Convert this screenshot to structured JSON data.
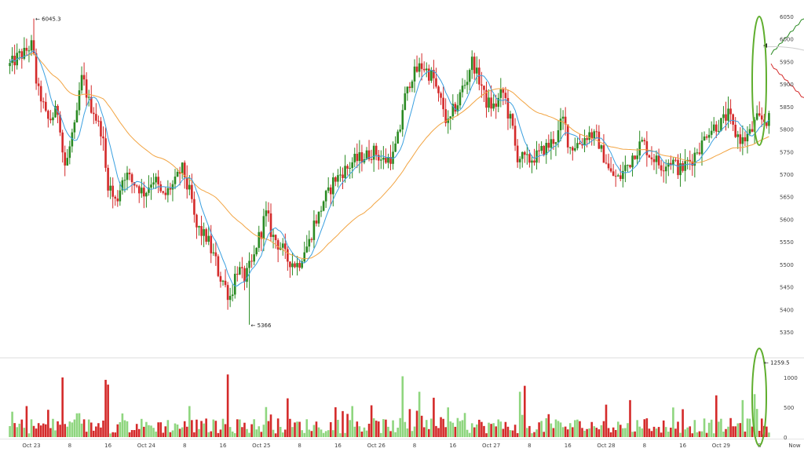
{
  "chart_data": {
    "type": "candlestick",
    "price_axis": {
      "ylim": [
        5325,
        6075
      ],
      "ticks": [
        5350,
        5400,
        5450,
        5500,
        5550,
        5600,
        5650,
        5700,
        5750,
        5800,
        5850,
        5900,
        5950,
        6000,
        6050
      ]
    },
    "volume_axis": {
      "ylim": [
        0,
        1290
      ],
      "ticks": [
        0,
        500,
        1000
      ]
    },
    "x_axis": {
      "ticks": [
        {
          "label": "Oct 23",
          "hour": 0
        },
        {
          "label": "8",
          "hour": 8
        },
        {
          "label": "16",
          "hour": 16
        },
        {
          "label": "Oct 24",
          "hour": 24
        },
        {
          "label": "8",
          "hour": 32
        },
        {
          "label": "16",
          "hour": 40
        },
        {
          "label": "Oct 25",
          "hour": 48
        },
        {
          "label": "8",
          "hour": 56
        },
        {
          "label": "16",
          "hour": 64
        },
        {
          "label": "Oct 26",
          "hour": 72
        },
        {
          "label": "8",
          "hour": 80
        },
        {
          "label": "16",
          "hour": 88
        },
        {
          "label": "Oct 27",
          "hour": 96
        },
        {
          "label": "8",
          "hour": 104
        },
        {
          "label": "16",
          "hour": 112
        },
        {
          "label": "Oct 28",
          "hour": 120
        },
        {
          "label": "8",
          "hour": 128
        },
        {
          "label": "16",
          "hour": 136
        },
        {
          "label": "Oct 29",
          "hour": 144
        },
        {
          "label": "8",
          "hour": 152
        },
        {
          "label": "Now",
          "hour": 158
        }
      ]
    },
    "annotations": {
      "high_label": "6045.3",
      "high_value": 6045.3,
      "high_hour": 0.5,
      "low_label": "5366",
      "low_value": 5366,
      "low_hour": 45.5,
      "volume_max_label": "1259.5",
      "volume_max_value": 1259.5
    },
    "price_anchors": [
      [
        -4.5,
        5940
      ],
      [
        -1.5,
        5965
      ],
      [
        0.5,
        5985
      ],
      [
        2,
        5880
      ],
      [
        4,
        5820
      ],
      [
        6,
        5840
      ],
      [
        7.5,
        5720
      ],
      [
        9.5,
        5800
      ],
      [
        11,
        5910
      ],
      [
        13,
        5850
      ],
      [
        15,
        5800
      ],
      [
        16.5,
        5680
      ],
      [
        18,
        5640
      ],
      [
        20,
        5700
      ],
      [
        22,
        5680
      ],
      [
        24,
        5660
      ],
      [
        26,
        5690
      ],
      [
        28,
        5650
      ],
      [
        30,
        5675
      ],
      [
        32,
        5710
      ],
      [
        33.5,
        5660
      ],
      [
        35,
        5580
      ],
      [
        37,
        5560
      ],
      [
        38.5,
        5520
      ],
      [
        40,
        5470
      ],
      [
        42,
        5430
      ],
      [
        43.5,
        5490
      ],
      [
        45,
        5470
      ],
      [
        46.5,
        5500
      ],
      [
        48,
        5560
      ],
      [
        49.5,
        5610
      ],
      [
        51,
        5560
      ],
      [
        52.5,
        5540
      ],
      [
        54,
        5510
      ],
      [
        56,
        5500
      ],
      [
        58,
        5540
      ],
      [
        60,
        5600
      ],
      [
        62,
        5650
      ],
      [
        64,
        5690
      ],
      [
        66,
        5710
      ],
      [
        68,
        5730
      ],
      [
        70,
        5740
      ],
      [
        72,
        5750
      ],
      [
        74,
        5730
      ],
      [
        76,
        5740
      ],
      [
        77,
        5780
      ],
      [
        78.5,
        5870
      ],
      [
        80,
        5920
      ],
      [
        82,
        5940
      ],
      [
        84,
        5920
      ],
      [
        86,
        5860
      ],
      [
        87.5,
        5810
      ],
      [
        89,
        5850
      ],
      [
        91,
        5900
      ],
      [
        92.5,
        5950
      ],
      [
        94,
        5910
      ],
      [
        95.5,
        5860
      ],
      [
        97,
        5850
      ],
      [
        99,
        5880
      ],
      [
        100.5,
        5820
      ],
      [
        102,
        5740
      ],
      [
        104,
        5730
      ],
      [
        106,
        5740
      ],
      [
        108,
        5760
      ],
      [
        110,
        5780
      ],
      [
        111.5,
        5820
      ],
      [
        113,
        5760
      ],
      [
        115,
        5770
      ],
      [
        117,
        5790
      ],
      [
        118.5,
        5780
      ],
      [
        120,
        5740
      ],
      [
        121.5,
        5700
      ],
      [
        123,
        5690
      ],
      [
        125,
        5720
      ],
      [
        126.5,
        5750
      ],
      [
        128,
        5770
      ],
      [
        130,
        5740
      ],
      [
        132,
        5720
      ],
      [
        134,
        5730
      ],
      [
        136,
        5710
      ],
      [
        138,
        5730
      ],
      [
        140,
        5760
      ],
      [
        142,
        5800
      ],
      [
        144,
        5810
      ],
      [
        146,
        5830
      ],
      [
        147.5,
        5790
      ],
      [
        149,
        5775
      ],
      [
        150.5,
        5790
      ],
      [
        152,
        5820
      ]
    ],
    "volume_spikes": [
      {
        "hour": -1,
        "value": 520
      },
      {
        "hour": 6.5,
        "value": 1000
      },
      {
        "hour": 16,
        "value": 880
      },
      {
        "hour": 15.5,
        "value": 960
      },
      {
        "hour": 41,
        "value": 1050
      },
      {
        "hour": 53.5,
        "value": 650
      },
      {
        "hour": 77.5,
        "value": 1020
      },
      {
        "hour": 81,
        "value": 760
      },
      {
        "hour": 84,
        "value": 660
      },
      {
        "hour": 103,
        "value": 860
      },
      {
        "hour": 102,
        "value": 760
      },
      {
        "hour": 125,
        "value": 620
      },
      {
        "hour": 143,
        "value": 700
      },
      {
        "hour": 148.5,
        "value": 620
      },
      {
        "hour": 151,
        "value": 720
      },
      {
        "hour": 155.5,
        "value": 1259.5
      },
      {
        "hour": 67,
        "value": 520
      },
      {
        "hour": 33,
        "value": 520
      }
    ],
    "order_book": {
      "bids_top": 6045,
      "bids_bottom": 5965,
      "asks_top": 5945,
      "asks_bottom": 5870
    },
    "colors": {
      "up": "#2a8a22",
      "down": "#d42a2a",
      "volume_up": "#8fd67f",
      "volume_down": "#d42a2a",
      "ma_fast": "#3aa0e0",
      "ma_slow": "#f2a442",
      "highlight": "#5fae2e",
      "axis_text": "#444444"
    }
  }
}
